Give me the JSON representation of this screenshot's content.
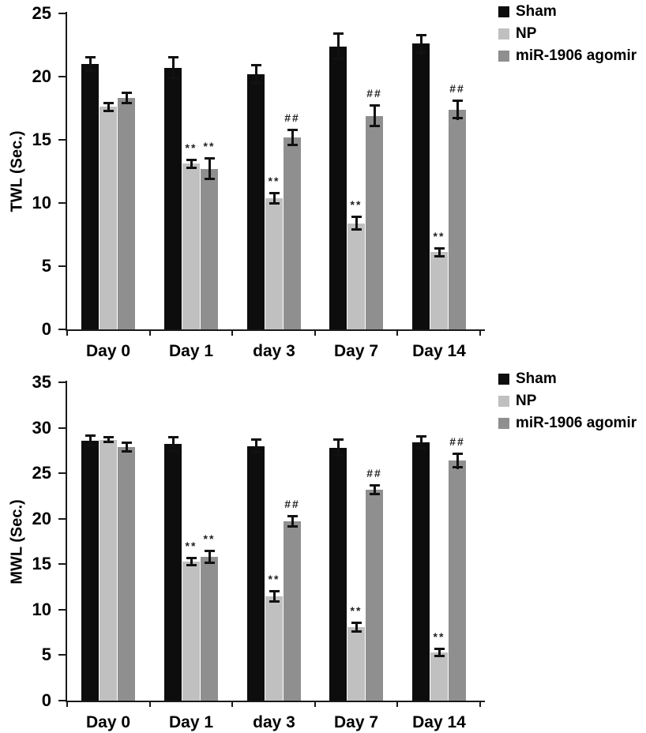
{
  "figure": {
    "background": "#ffffff",
    "text_color": "#000000",
    "axis_color": "#1a1a1a"
  },
  "chart_data": [
    {
      "type": "bar",
      "title": "",
      "xlabel": "",
      "ylabel": "TWL (Sec.)",
      "ylim": [
        0,
        25
      ],
      "yticks": [
        0,
        5,
        10,
        15,
        20,
        25
      ],
      "grid": false,
      "legend_position": "right-top",
      "categories": [
        "Day 0",
        "Day 1",
        "day 3",
        "Day 7",
        "Day 14"
      ],
      "series": [
        {
          "name": "Sham",
          "color": "#0d0d0d",
          "values": [
            21.0,
            20.7,
            20.2,
            22.4,
            22.6
          ],
          "errors": [
            0.6,
            0.9,
            0.8,
            1.1,
            0.8
          ],
          "annotations": [
            "",
            "",
            "",
            "",
            ""
          ]
        },
        {
          "name": "NP",
          "color": "#c0c0c0",
          "values": [
            17.6,
            13.1,
            10.4,
            8.4,
            6.1
          ],
          "errors": [
            0.4,
            0.4,
            0.5,
            0.6,
            0.4
          ],
          "annotations": [
            "",
            "**",
            "**",
            "**",
            "**"
          ]
        },
        {
          "name": "miR-1906 agomir",
          "color": "#8f8f8f",
          "values": [
            18.3,
            12.7,
            15.2,
            16.9,
            17.4
          ],
          "errors": [
            0.5,
            0.9,
            0.7,
            0.9,
            0.8
          ],
          "annotations": [
            "",
            "**",
            "##",
            "##",
            "##"
          ]
        }
      ]
    },
    {
      "type": "bar",
      "title": "",
      "xlabel": "",
      "ylabel": "MWL (Sec.)",
      "ylim": [
        0,
        35
      ],
      "yticks": [
        0,
        5,
        10,
        15,
        20,
        25,
        30,
        35
      ],
      "grid": false,
      "legend_position": "right-top",
      "categories": [
        "Day 0",
        "Day 1",
        "day 3",
        "Day 7",
        "Day 14"
      ],
      "series": [
        {
          "name": "Sham",
          "color": "#0d0d0d",
          "values": [
            28.6,
            28.2,
            28.0,
            27.8,
            28.4
          ],
          "errors": [
            0.7,
            0.9,
            0.8,
            1.0,
            0.8
          ],
          "annotations": [
            "",
            "",
            "",
            "",
            ""
          ]
        },
        {
          "name": "NP",
          "color": "#c0c0c0",
          "values": [
            28.7,
            15.3,
            11.5,
            8.1,
            5.3
          ],
          "errors": [
            0.4,
            0.5,
            0.7,
            0.6,
            0.5
          ],
          "annotations": [
            "",
            "**",
            "**",
            "**",
            "**"
          ]
        },
        {
          "name": "miR-1906 agomir",
          "color": "#8f8f8f",
          "values": [
            27.9,
            15.8,
            19.7,
            23.2,
            26.4
          ],
          "errors": [
            0.6,
            0.8,
            0.7,
            0.6,
            0.9
          ],
          "annotations": [
            "",
            "**",
            "##",
            "##",
            "##"
          ]
        }
      ]
    }
  ]
}
